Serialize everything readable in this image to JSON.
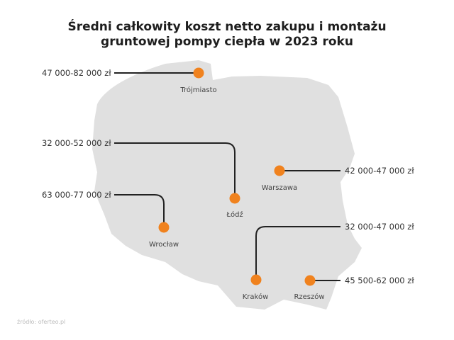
{
  "title_line1": "Średni całkowity koszt netto zakupu i montażu",
  "title_line2": "gruntowej pompy ciepła w 2023 roku",
  "colors": {
    "map": "#e0e0e0",
    "marker": "#f0821e",
    "line": "#222222"
  },
  "cities": [
    {
      "name": "Trójmiasto",
      "price": "47 000-82 000 zł"
    },
    {
      "name": "Łódź",
      "price": "32 000-52 000 zł"
    },
    {
      "name": "Warszawa",
      "price": "42 000-47 000 zł"
    },
    {
      "name": "Wrocław",
      "price": "63 000-77 000 zł"
    },
    {
      "name": "Kraków",
      "price": "32 000-47 000 zł"
    },
    {
      "name": "Rzeszów",
      "price": "45 500-62 000 zł"
    }
  ],
  "source": "źródło: oferteo.pl"
}
